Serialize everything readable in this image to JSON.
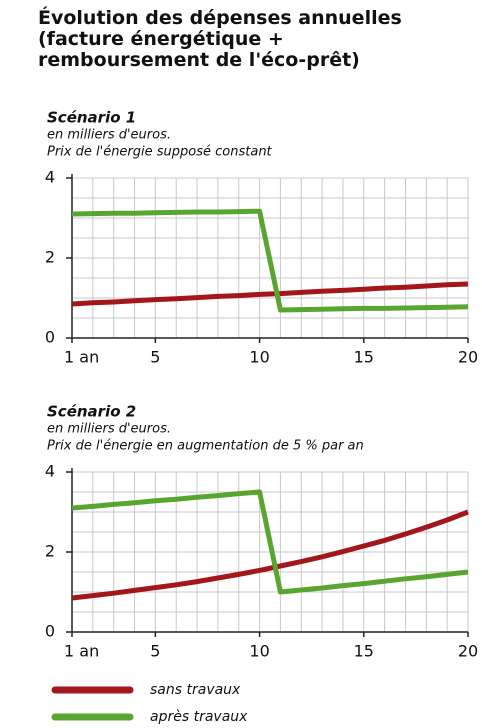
{
  "title": "Évolution des dépenses annuelles (facture énergétique + remboursement de l'éco-prêt)",
  "chart_data": [
    {
      "type": "line",
      "title": "Scénario 1",
      "subtitle": [
        "en milliers d'euros.",
        "Prix de l'énergie supposé constant"
      ],
      "x": [
        1,
        2,
        3,
        4,
        5,
        6,
        7,
        8,
        9,
        10,
        11,
        12,
        13,
        14,
        15,
        16,
        17,
        18,
        19,
        20
      ],
      "xlim": [
        1,
        20
      ],
      "xticks": [
        {
          "value": 1,
          "label": "1 an"
        },
        5,
        10,
        15,
        20
      ],
      "ylim": [
        0,
        4
      ],
      "yticks": [
        0,
        2,
        4
      ],
      "minor_xticks": [
        1,
        2,
        3,
        4,
        5,
        6,
        7,
        8,
        9,
        10,
        11,
        12,
        13,
        14,
        15,
        16,
        17,
        18,
        19,
        20
      ],
      "minor_yticks": [
        0,
        0.5,
        1,
        1.5,
        2,
        2.5,
        3,
        3.5,
        4
      ],
      "grid": true,
      "series": [
        {
          "name": "sans travaux",
          "color": "#a3171c",
          "values": [
            0.85,
            0.88,
            0.9,
            0.93,
            0.96,
            0.98,
            1.01,
            1.04,
            1.06,
            1.09,
            1.11,
            1.14,
            1.17,
            1.19,
            1.22,
            1.25,
            1.27,
            1.3,
            1.33,
            1.35
          ]
        },
        {
          "name": "après travaux",
          "color": "#58a630",
          "values": [
            3.1,
            3.11,
            3.12,
            3.12,
            3.13,
            3.14,
            3.15,
            3.15,
            3.16,
            3.17,
            0.7,
            0.71,
            0.72,
            0.73,
            0.74,
            0.74,
            0.75,
            0.76,
            0.77,
            0.78
          ]
        }
      ]
    },
    {
      "type": "line",
      "title": "Scénario 2",
      "subtitle": [
        "en milliers d'euros.",
        "Prix de l'énergie en augmentation de 5 % par an"
      ],
      "x": [
        1,
        2,
        3,
        4,
        5,
        6,
        7,
        8,
        9,
        10,
        11,
        12,
        13,
        14,
        15,
        16,
        17,
        18,
        19,
        20
      ],
      "xlim": [
        1,
        20
      ],
      "xticks": [
        {
          "value": 1,
          "label": "1 an"
        },
        5,
        10,
        15,
        20
      ],
      "ylim": [
        0,
        4
      ],
      "yticks": [
        0,
        2,
        4
      ],
      "minor_xticks": [
        1,
        2,
        3,
        4,
        5,
        6,
        7,
        8,
        9,
        10,
        11,
        12,
        13,
        14,
        15,
        16,
        17,
        18,
        19,
        20
      ],
      "minor_yticks": [
        0,
        0.5,
        1,
        1.5,
        2,
        2.5,
        3,
        3.5,
        4
      ],
      "grid": true,
      "legend": "bottom",
      "series": [
        {
          "name": "sans travaux",
          "color": "#a3171c",
          "values": [
            0.85,
            0.91,
            0.97,
            1.04,
            1.11,
            1.18,
            1.26,
            1.35,
            1.44,
            1.54,
            1.65,
            1.76,
            1.88,
            2.01,
            2.15,
            2.29,
            2.45,
            2.62,
            2.8,
            3.0
          ]
        },
        {
          "name": "après travaux",
          "color": "#58a630",
          "values": [
            3.1,
            3.14,
            3.19,
            3.23,
            3.28,
            3.32,
            3.37,
            3.41,
            3.46,
            3.5,
            1.0,
            1.05,
            1.1,
            1.16,
            1.21,
            1.27,
            1.33,
            1.38,
            1.44,
            1.5
          ]
        }
      ]
    }
  ]
}
